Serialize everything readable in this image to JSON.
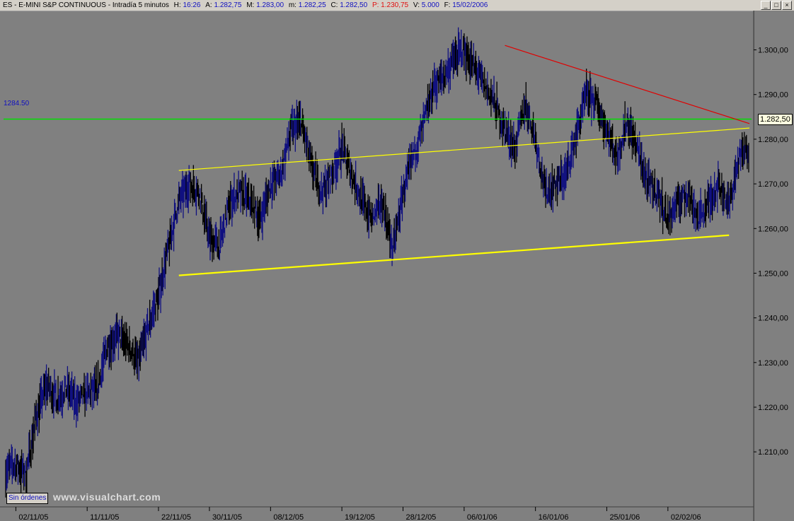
{
  "header": {
    "symbol": "ES",
    "name": "E-MINI S&P CONTINUOUS",
    "interval": "Intradía 5 minutos",
    "h_label": "H:",
    "h_value": "16:26",
    "a_label": "A:",
    "a_value": "1.282,75",
    "m_label": "M:",
    "m_value": "1.283,00",
    "mn_label": "m:",
    "mn_value": "1.282,25",
    "c_label": "C:",
    "c_value": "1.282,50",
    "p_label": "P:",
    "p_value": "1.230,75",
    "v_label": "V:",
    "v_value": "5.000",
    "f_label": "F:",
    "f_value": "15/02/2006"
  },
  "window_buttons": [
    "_",
    "□",
    "×"
  ],
  "sin_ordenes": "Sin órdenes",
  "watermark": "www.visualchart.com",
  "reference_label": "1284.50",
  "last_price": "1.282,50",
  "colors": {
    "background": "#808080",
    "up_bars": "#101080",
    "down_bars": "#000000",
    "horizontal_line": "#00e000",
    "channel_lines": "#ffff00",
    "resistance_line": "#e00000"
  },
  "chart_data": {
    "type": "line",
    "title": "",
    "xlabel": "",
    "ylabel": "",
    "ylim": [
      1198,
      1308
    ],
    "y_ticks": [
      {
        "value": 1210,
        "label": "1.210,00"
      },
      {
        "value": 1220,
        "label": "1.220,00"
      },
      {
        "value": 1230,
        "label": "1.230,00"
      },
      {
        "value": 1240,
        "label": "1.240,00"
      },
      {
        "value": 1250,
        "label": "1.250,00"
      },
      {
        "value": 1260,
        "label": "1.260,00"
      },
      {
        "value": 1270,
        "label": "1.270,00"
      },
      {
        "value": 1280,
        "label": "1.280,00"
      },
      {
        "value": 1290,
        "label": "1.290,00"
      },
      {
        "value": 1300,
        "label": "1.300,00"
      }
    ],
    "x_ticks": [
      {
        "index": 1,
        "label": "02/11/05"
      },
      {
        "index": 8,
        "label": "11/11/05"
      },
      {
        "index": 15,
        "label": "22/11/05"
      },
      {
        "index": 20,
        "label": "30/11/05"
      },
      {
        "index": 26,
        "label": "08/12/05"
      },
      {
        "index": 33,
        "label": "19/12/05"
      },
      {
        "index": 39,
        "label": "28/12/05"
      },
      {
        "index": 45,
        "label": "06/01/06"
      },
      {
        "index": 52,
        "label": "16/01/06"
      },
      {
        "index": 59,
        "label": "25/01/06"
      },
      {
        "index": 65,
        "label": "02/02/06"
      }
    ],
    "x_count": 74,
    "price_path": [
      1206,
      1207,
      1205,
      1218,
      1225,
      1222,
      1224,
      1221,
      1223,
      1224,
      1234,
      1236,
      1234,
      1230,
      1238,
      1245,
      1256,
      1266,
      1270,
      1268,
      1258,
      1256,
      1266,
      1268,
      1266,
      1262,
      1270,
      1272,
      1282,
      1284,
      1274,
      1268,
      1272,
      1278,
      1272,
      1266,
      1262,
      1266,
      1255,
      1268,
      1276,
      1283,
      1292,
      1294,
      1298,
      1300,
      1296,
      1292,
      1288,
      1282,
      1278,
      1288,
      1280,
      1268,
      1270,
      1272,
      1281,
      1290,
      1288,
      1282,
      1276,
      1284,
      1278,
      1270,
      1268,
      1262,
      1266,
      1268,
      1262,
      1266,
      1270,
      1265,
      1276,
      1278
    ],
    "lines": [
      {
        "kind": "horizontal",
        "value": 1284.5,
        "label": "1284.50"
      },
      {
        "kind": "trend",
        "from": [
          17,
          1273
        ],
        "to": [
          73,
          1282.5
        ]
      },
      {
        "kind": "trend",
        "from": [
          17,
          1249.5
        ],
        "to": [
          71,
          1258.5
        ]
      },
      {
        "kind": "trend",
        "from": [
          49,
          1301
        ],
        "to": [
          73,
          1283.5
        ]
      }
    ]
  }
}
